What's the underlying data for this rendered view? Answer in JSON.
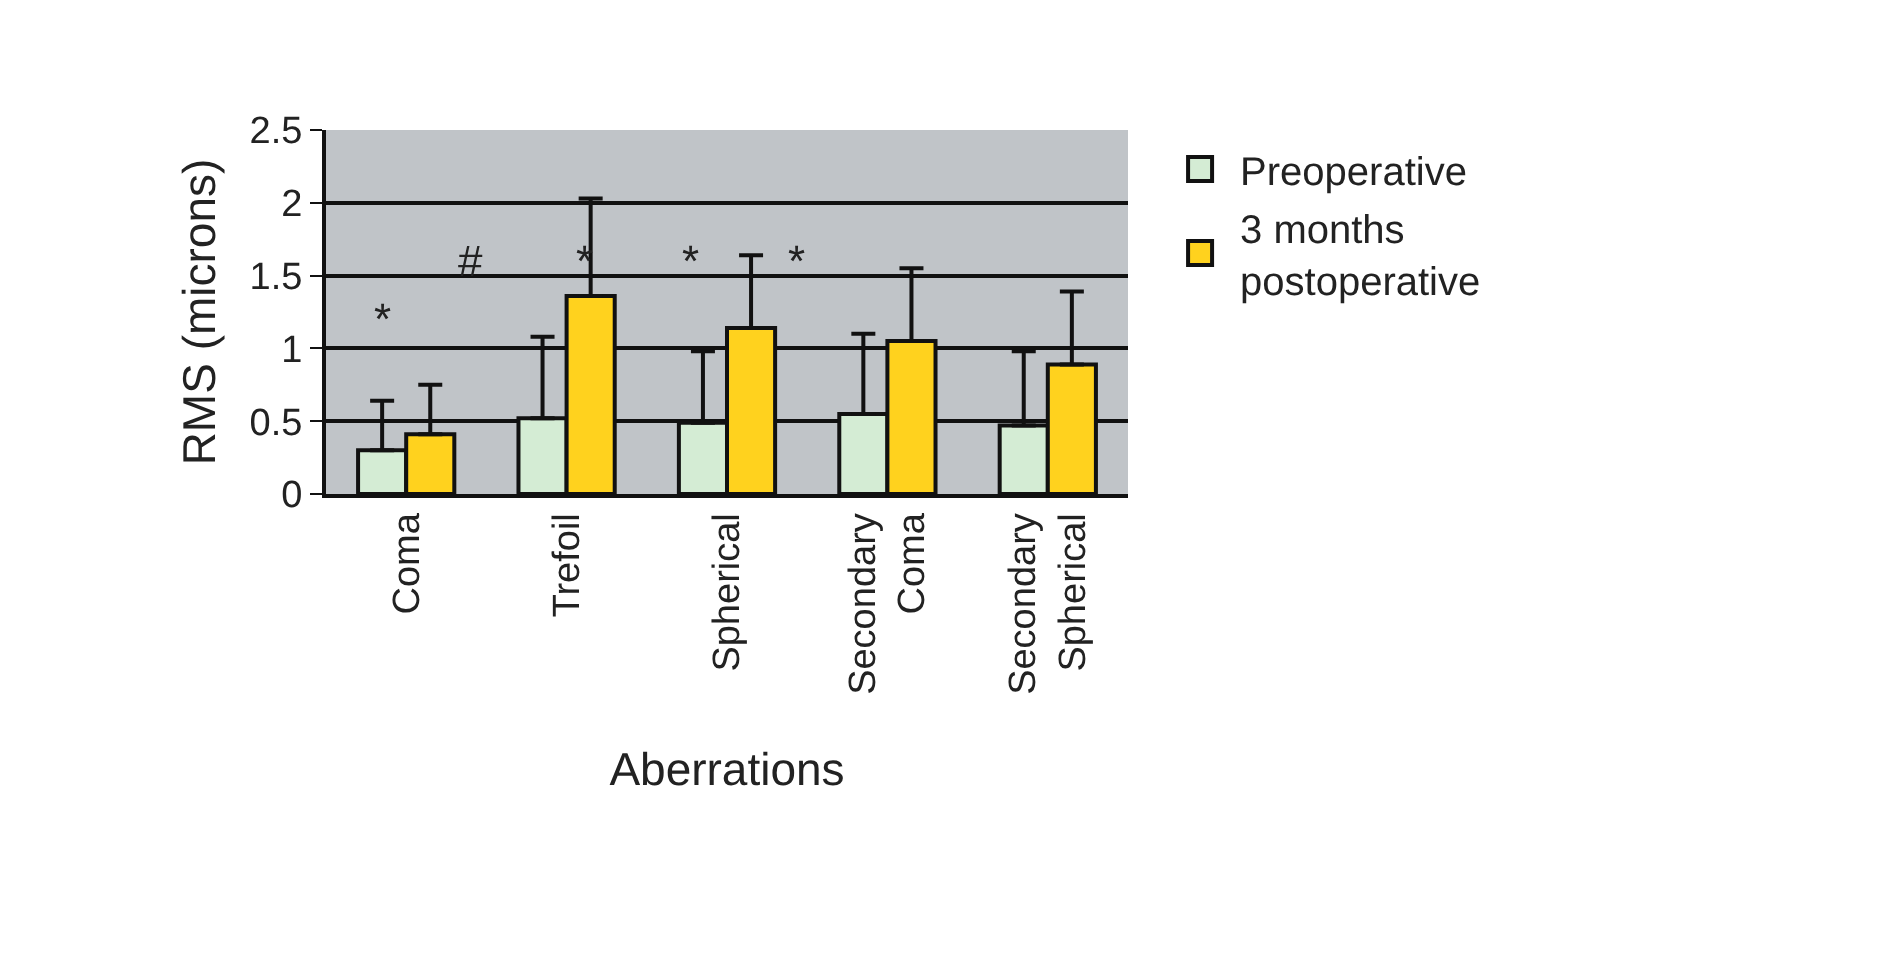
{
  "chart_data": {
    "type": "bar",
    "xlabel": "Aberrations",
    "ylabel": "RMS (microns)",
    "categories": [
      "Coma",
      "Trefoil",
      "Spherical",
      "Secondary Coma",
      "Secondary Spherical"
    ],
    "series": [
      {
        "name": "Preoperative",
        "color": "#d4ecd4",
        "values": [
          0.3,
          0.52,
          0.49,
          0.55,
          0.47
        ],
        "errors": [
          [
            0.3,
            0.64
          ],
          [
            0.52,
            1.08
          ],
          [
            0.49,
            0.98
          ],
          [
            0.55,
            1.1
          ],
          [
            0.47,
            0.98
          ]
        ]
      },
      {
        "name": "3 months postoperative",
        "color": "#ffd21e",
        "values": [
          0.41,
          1.36,
          1.14,
          1.05,
          0.89
        ],
        "errors": [
          [
            0.41,
            0.75
          ],
          [
            1.36,
            2.03
          ],
          [
            1.14,
            1.64
          ],
          [
            1.05,
            1.55
          ],
          [
            0.89,
            1.39
          ]
        ]
      }
    ],
    "ylim": [
      0,
      2.5
    ],
    "yticks": [
      0,
      0.5,
      1,
      1.5,
      2,
      2.5
    ],
    "grid": "y",
    "legend": "top right",
    "annotations": [
      "*",
      "#",
      "*",
      "*",
      "*"
    ]
  }
}
